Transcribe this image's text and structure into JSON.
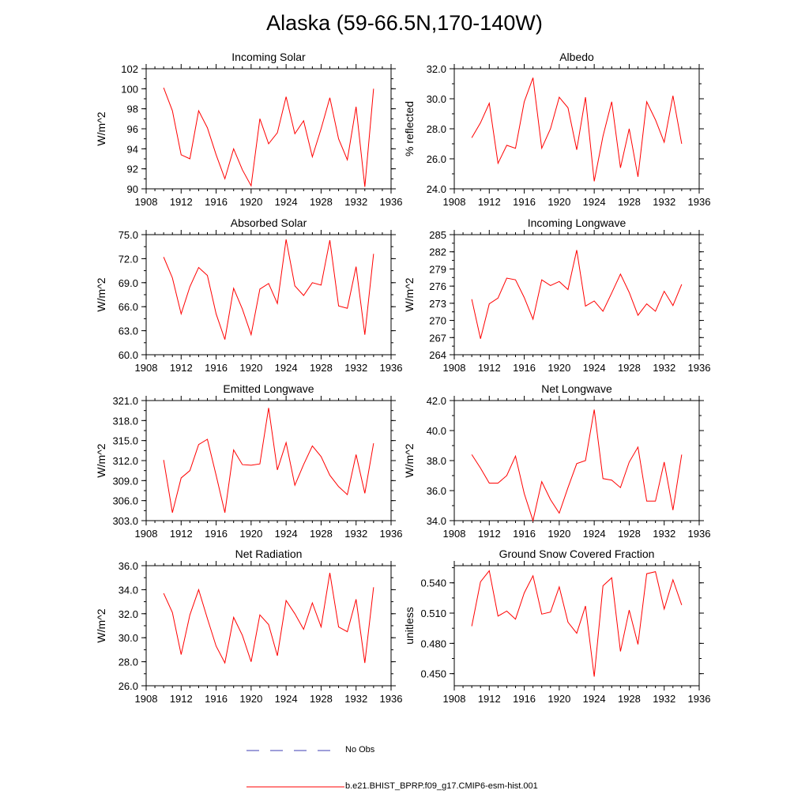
{
  "figure": {
    "title": "Alaska (59-66.5N,170-140W)",
    "line_color": "#ff0000",
    "obs_color": "#3c3cb4",
    "axis_color": "#000000"
  },
  "legend": {
    "entries": [
      {
        "label": "No Obs",
        "style": "dashed",
        "color": "#3c3cb4"
      },
      {
        "label": "b.e21.BHIST_BPRP.f09_g17.CMIP6-esm-hist.001",
        "style": "solid",
        "color": "#ff0000"
      }
    ]
  },
  "chart_data": [
    {
      "type": "line",
      "title": "Incoming Solar",
      "ylabel": "W/m^2",
      "xlabel": "",
      "xlim": [
        1908,
        1936
      ],
      "xticks": [
        "1908",
        "1912",
        "1916",
        "1920",
        "1924",
        "1928",
        "1932",
        "1936"
      ],
      "ylim": [
        90,
        102
      ],
      "yticks": [
        "90",
        "92",
        "94",
        "96",
        "98",
        "100",
        "102"
      ],
      "x": [
        1910,
        1911,
        1912,
        1913,
        1914,
        1915,
        1916,
        1917,
        1918,
        1919,
        1920,
        1921,
        1922,
        1923,
        1924,
        1925,
        1926,
        1927,
        1928,
        1929,
        1930,
        1931,
        1932,
        1933,
        1934
      ],
      "series": [
        {
          "name": "b.e21.BHIST_BPRP.f09_g17.CMIP6-esm-hist.001",
          "values": [
            100.1,
            97.8,
            93.4,
            93.0,
            97.8,
            96.1,
            93.4,
            91.0,
            94.0,
            91.9,
            90.3,
            97.0,
            94.5,
            95.6,
            99.2,
            95.5,
            96.8,
            93.2,
            96.0,
            99.1,
            95.0,
            92.9,
            98.2,
            90.2,
            100.0
          ]
        }
      ]
    },
    {
      "type": "line",
      "title": "Albedo",
      "ylabel": "% reflected",
      "xlabel": "",
      "xlim": [
        1908,
        1936
      ],
      "xticks": [
        "1908",
        "1912",
        "1916",
        "1920",
        "1924",
        "1928",
        "1932",
        "1936"
      ],
      "ylim": [
        24.0,
        32.0
      ],
      "yticks": [
        "24.0",
        "26.0",
        "28.0",
        "30.0",
        "32.0"
      ],
      "x": [
        1910,
        1911,
        1912,
        1913,
        1914,
        1915,
        1916,
        1917,
        1918,
        1919,
        1920,
        1921,
        1922,
        1923,
        1924,
        1925,
        1926,
        1927,
        1928,
        1929,
        1930,
        1931,
        1932,
        1933,
        1934
      ],
      "series": [
        {
          "name": "b.e21.BHIST_BPRP.f09_g17.CMIP6-esm-hist.001",
          "values": [
            27.4,
            28.4,
            29.7,
            25.7,
            26.9,
            26.7,
            29.8,
            31.4,
            26.7,
            28.0,
            30.1,
            29.4,
            26.6,
            30.1,
            24.5,
            27.5,
            29.8,
            25.4,
            28.0,
            24.8,
            29.8,
            28.6,
            27.1,
            30.2,
            27.0
          ]
        }
      ]
    },
    {
      "type": "line",
      "title": "Absorbed Solar",
      "ylabel": "W/m^2",
      "xlabel": "",
      "xlim": [
        1908,
        1936
      ],
      "xticks": [
        "1908",
        "1912",
        "1916",
        "1920",
        "1924",
        "1928",
        "1932",
        "1936"
      ],
      "ylim": [
        60.0,
        75.0
      ],
      "yticks": [
        "60.0",
        "63.0",
        "66.0",
        "69.0",
        "72.0",
        "75.0"
      ],
      "x": [
        1910,
        1911,
        1912,
        1913,
        1914,
        1915,
        1916,
        1917,
        1918,
        1919,
        1920,
        1921,
        1922,
        1923,
        1924,
        1925,
        1926,
        1927,
        1928,
        1929,
        1930,
        1931,
        1932,
        1933,
        1934
      ],
      "series": [
        {
          "name": "b.e21.BHIST_BPRP.f09_g17.CMIP6-esm-hist.001",
          "values": [
            72.2,
            69.6,
            65.1,
            68.5,
            70.9,
            69.9,
            65.1,
            61.9,
            68.3,
            65.7,
            62.5,
            68.2,
            68.9,
            66.4,
            74.4,
            68.6,
            67.4,
            69.0,
            68.7,
            74.3,
            66.1,
            65.8,
            71.0,
            62.5,
            72.6
          ]
        }
      ]
    },
    {
      "type": "line",
      "title": "Incoming Longwave",
      "ylabel": "W/m^2",
      "xlabel": "",
      "xlim": [
        1908,
        1936
      ],
      "xticks": [
        "1908",
        "1912",
        "1916",
        "1920",
        "1924",
        "1928",
        "1932",
        "1936"
      ],
      "ylim": [
        264,
        285
      ],
      "yticks": [
        "264",
        "267",
        "270",
        "273",
        "276",
        "279",
        "282",
        "285"
      ],
      "x": [
        1910,
        1911,
        1912,
        1913,
        1914,
        1915,
        1916,
        1917,
        1918,
        1919,
        1920,
        1921,
        1922,
        1923,
        1924,
        1925,
        1926,
        1927,
        1928,
        1929,
        1930,
        1931,
        1932,
        1933,
        1934
      ],
      "series": [
        {
          "name": "b.e21.BHIST_BPRP.f09_g17.CMIP6-esm-hist.001",
          "values": [
            273.7,
            266.8,
            272.9,
            273.9,
            277.4,
            277.1,
            274.0,
            270.2,
            277.1,
            276.1,
            276.8,
            275.4,
            282.3,
            272.5,
            273.4,
            271.6,
            274.8,
            278.1,
            274.9,
            270.9,
            272.9,
            271.6,
            275.1,
            272.6,
            276.3
          ]
        }
      ]
    },
    {
      "type": "line",
      "title": "Emitted Longwave",
      "ylabel": "W/m^2",
      "xlabel": "",
      "xlim": [
        1908,
        1936
      ],
      "xticks": [
        "1908",
        "1912",
        "1916",
        "1920",
        "1924",
        "1928",
        "1932",
        "1936"
      ],
      "ylim": [
        303.0,
        321.0
      ],
      "yticks": [
        "303.0",
        "306.0",
        "309.0",
        "312.0",
        "315.0",
        "318.0",
        "321.0"
      ],
      "x": [
        1910,
        1911,
        1912,
        1913,
        1914,
        1915,
        1916,
        1917,
        1918,
        1919,
        1920,
        1921,
        1922,
        1923,
        1924,
        1925,
        1926,
        1927,
        1928,
        1929,
        1930,
        1931,
        1932,
        1933,
        1934
      ],
      "series": [
        {
          "name": "b.e21.BHIST_BPRP.f09_g17.CMIP6-esm-hist.001",
          "values": [
            312.1,
            304.2,
            309.4,
            310.5,
            314.4,
            315.2,
            309.8,
            304.2,
            313.6,
            311.4,
            311.3,
            311.5,
            319.9,
            310.6,
            314.7,
            308.3,
            311.4,
            314.2,
            312.6,
            309.8,
            308.1,
            306.9,
            312.9,
            307.1,
            314.6
          ]
        }
      ]
    },
    {
      "type": "line",
      "title": "Net Longwave",
      "ylabel": "W/m^2",
      "xlabel": "",
      "xlim": [
        1908,
        1936
      ],
      "xticks": [
        "1908",
        "1912",
        "1916",
        "1920",
        "1924",
        "1928",
        "1932",
        "1936"
      ],
      "ylim": [
        34.0,
        42.0
      ],
      "yticks": [
        "34.0",
        "36.0",
        "38.0",
        "40.0",
        "42.0"
      ],
      "x": [
        1910,
        1911,
        1912,
        1913,
        1914,
        1915,
        1916,
        1917,
        1918,
        1919,
        1920,
        1921,
        1922,
        1923,
        1924,
        1925,
        1926,
        1927,
        1928,
        1929,
        1930,
        1931,
        1932,
        1933,
        1934
      ],
      "series": [
        {
          "name": "b.e21.BHIST_BPRP.f09_g17.CMIP6-esm-hist.001",
          "values": [
            38.4,
            37.5,
            36.5,
            36.5,
            37.0,
            38.3,
            35.8,
            34.0,
            36.6,
            35.4,
            34.5,
            36.2,
            37.8,
            38.0,
            41.4,
            36.8,
            36.7,
            36.2,
            37.9,
            38.9,
            35.3,
            35.3,
            37.9,
            34.7,
            38.4
          ]
        }
      ]
    },
    {
      "type": "line",
      "title": "Net Radiation",
      "ylabel": "W/m^2",
      "xlabel": "",
      "xlim": [
        1908,
        1936
      ],
      "xticks": [
        "1908",
        "1912",
        "1916",
        "1920",
        "1924",
        "1928",
        "1932",
        "1936"
      ],
      "ylim": [
        26.0,
        36.0
      ],
      "yticks": [
        "26.0",
        "28.0",
        "30.0",
        "32.0",
        "34.0",
        "36.0"
      ],
      "x": [
        1910,
        1911,
        1912,
        1913,
        1914,
        1915,
        1916,
        1917,
        1918,
        1919,
        1920,
        1921,
        1922,
        1923,
        1924,
        1925,
        1926,
        1927,
        1928,
        1929,
        1930,
        1931,
        1932,
        1933,
        1934
      ],
      "series": [
        {
          "name": "b.e21.BHIST_BPRP.f09_g17.CMIP6-esm-hist.001",
          "values": [
            33.7,
            32.1,
            28.6,
            31.9,
            34.0,
            31.6,
            29.3,
            27.9,
            31.7,
            30.2,
            28.0,
            31.9,
            31.1,
            28.5,
            33.1,
            32.0,
            30.7,
            32.9,
            30.9,
            35.4,
            30.9,
            30.5,
            33.2,
            27.9,
            34.2
          ]
        }
      ]
    },
    {
      "type": "line",
      "title": "Ground Snow Covered Fraction",
      "ylabel": "unitless",
      "xlabel": "",
      "xlim": [
        1908,
        1936
      ],
      "xticks": [
        "1908",
        "1912",
        "1916",
        "1920",
        "1924",
        "1928",
        "1932",
        "1936"
      ],
      "ylim": [
        0.438,
        0.557
      ],
      "yticks": [
        "0.450",
        "0.480",
        "0.510",
        "0.540"
      ],
      "x": [
        1910,
        1911,
        1912,
        1913,
        1914,
        1915,
        1916,
        1917,
        1918,
        1919,
        1920,
        1921,
        1922,
        1923,
        1924,
        1925,
        1926,
        1927,
        1928,
        1929,
        1930,
        1931,
        1932,
        1933,
        1934
      ],
      "series": [
        {
          "name": "b.e21.BHIST_BPRP.f09_g17.CMIP6-esm-hist.001",
          "values": [
            0.497,
            0.541,
            0.552,
            0.507,
            0.512,
            0.504,
            0.53,
            0.547,
            0.509,
            0.511,
            0.536,
            0.501,
            0.49,
            0.517,
            0.447,
            0.537,
            0.545,
            0.472,
            0.513,
            0.479,
            0.549,
            0.551,
            0.514,
            0.543,
            0.518
          ]
        }
      ]
    }
  ]
}
